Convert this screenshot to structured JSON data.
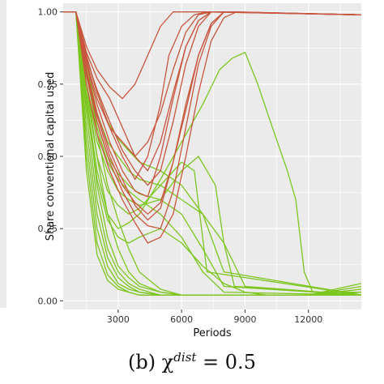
{
  "caption": {
    "prefix": "(b) χ",
    "superscript": "dist",
    "suffix": " = 0.5"
  },
  "chart_data": {
    "type": "line",
    "xlabel": "Periods",
    "ylabel": "Share conventional capital used",
    "xlim": [
      400,
      14500
    ],
    "ylim": [
      -0.03,
      1.03
    ],
    "xticks": [
      3000,
      6000,
      9000,
      12000
    ],
    "yticks": [
      0.0,
      0.25,
      0.5,
      0.75,
      1.0
    ],
    "xtick_labels": [
      "3000",
      "6000",
      "9000",
      "12000"
    ],
    "ytick_labels": [
      "0.00",
      "0.25",
      "0.50",
      "0.75",
      "1.00"
    ],
    "grid": true,
    "legend": "none",
    "panel_background": "#ebebeb",
    "grid_color": "#ffffff",
    "colors": {
      "red": "#c8553d",
      "green": "#7cc61f"
    },
    "series": [
      {
        "color": "red",
        "x": [
          400,
          1000,
          1500,
          2000,
          2600,
          3200,
          3800,
          4400,
          5000,
          5400,
          6000,
          6600,
          7200,
          14500
        ],
        "y": [
          1.0,
          1.0,
          0.85,
          0.72,
          0.6,
          0.5,
          0.42,
          0.5,
          0.68,
          0.85,
          0.95,
          0.99,
          1.0,
          0.99
        ]
      },
      {
        "color": "red",
        "x": [
          400,
          1000,
          1500,
          2000,
          2600,
          3200,
          3800,
          4400,
          5000,
          5600,
          6200,
          6800,
          7400,
          14500
        ],
        "y": [
          1.0,
          1.0,
          0.82,
          0.68,
          0.55,
          0.45,
          0.38,
          0.36,
          0.5,
          0.7,
          0.88,
          0.97,
          1.0,
          0.99
        ]
      },
      {
        "color": "red",
        "x": [
          400,
          1000,
          1500,
          2000,
          2600,
          3200,
          3800,
          4400,
          5000,
          5600,
          6200,
          6800,
          7400,
          8000,
          14500
        ],
        "y": [
          1.0,
          1.0,
          0.8,
          0.65,
          0.52,
          0.42,
          0.33,
          0.28,
          0.32,
          0.48,
          0.68,
          0.85,
          0.96,
          1.0,
          0.99
        ]
      },
      {
        "color": "red",
        "x": [
          400,
          1000,
          1500,
          2000,
          2600,
          3200,
          3800,
          4400,
          5000,
          5600,
          6200,
          6800,
          7400,
          8000,
          14500
        ],
        "y": [
          1.0,
          1.0,
          0.78,
          0.62,
          0.48,
          0.38,
          0.3,
          0.26,
          0.25,
          0.38,
          0.6,
          0.82,
          0.95,
          1.0,
          0.99
        ]
      },
      {
        "color": "red",
        "x": [
          400,
          1000,
          1500,
          2000,
          2600,
          3200,
          3800,
          4400,
          5000,
          5600,
          6200,
          6800,
          7400,
          8000,
          14500
        ],
        "y": [
          1.0,
          1.0,
          0.86,
          0.77,
          0.7,
          0.6,
          0.5,
          0.45,
          0.55,
          0.72,
          0.88,
          0.97,
          1.0,
          1.0,
          0.99
        ]
      },
      {
        "color": "red",
        "x": [
          400,
          1000,
          1500,
          2000,
          2600,
          3200,
          3800,
          4400,
          5000,
          5600,
          6200,
          6800,
          7400,
          8000,
          8600,
          14500
        ],
        "y": [
          1.0,
          1.0,
          0.75,
          0.58,
          0.45,
          0.35,
          0.27,
          0.2,
          0.22,
          0.3,
          0.5,
          0.72,
          0.9,
          0.98,
          1.0,
          0.99
        ]
      },
      {
        "color": "red",
        "x": [
          400,
          1000,
          1500,
          2000,
          2600,
          3200,
          3800,
          4400,
          5000,
          5600,
          6200,
          6800,
          7400,
          8000,
          14500
        ],
        "y": [
          1.0,
          1.0,
          0.88,
          0.8,
          0.74,
          0.7,
          0.75,
          0.85,
          0.95,
          1.0,
          1.0,
          1.0,
          1.0,
          1.0,
          0.99
        ]
      },
      {
        "color": "red",
        "x": [
          400,
          1000,
          1500,
          2000,
          2600,
          3200,
          3800,
          4400,
          5000,
          5600,
          6200,
          6800,
          7400,
          8000,
          14500
        ],
        "y": [
          1.0,
          1.0,
          0.83,
          0.7,
          0.6,
          0.55,
          0.5,
          0.55,
          0.65,
          0.8,
          0.93,
          0.99,
          1.0,
          1.0,
          0.99
        ]
      },
      {
        "color": "red",
        "x": [
          400,
          1000,
          1500,
          2000,
          2600,
          3200,
          3800,
          4400,
          5000,
          5600,
          6200,
          6800,
          7400,
          8000,
          14500
        ],
        "y": [
          1.0,
          1.0,
          0.79,
          0.64,
          0.5,
          0.4,
          0.34,
          0.3,
          0.34,
          0.48,
          0.66,
          0.85,
          0.96,
          1.0,
          0.99
        ]
      },
      {
        "color": "red",
        "x": [
          400,
          1000,
          1500,
          2000,
          2600,
          3200,
          3800,
          4400,
          5000,
          5600,
          6200,
          6800,
          7400,
          8000,
          14500
        ],
        "y": [
          1.0,
          1.0,
          0.84,
          0.73,
          0.62,
          0.52,
          0.45,
          0.4,
          0.45,
          0.62,
          0.82,
          0.95,
          1.0,
          1.0,
          0.99
        ]
      },
      {
        "color": "green",
        "x": [
          400,
          1000,
          1500,
          2000,
          2500,
          3000,
          3500,
          4000,
          5000,
          6000,
          7000,
          8000,
          9000,
          10000,
          11000,
          12000,
          13000,
          14500
        ],
        "y": [
          1.0,
          1.0,
          0.6,
          0.3,
          0.15,
          0.08,
          0.05,
          0.03,
          0.02,
          0.02,
          0.02,
          0.02,
          0.02,
          0.02,
          0.02,
          0.02,
          0.02,
          0.03
        ]
      },
      {
        "color": "green",
        "x": [
          400,
          1000,
          1500,
          2000,
          2500,
          3000,
          3500,
          4000,
          5000,
          6000,
          8000,
          10000,
          12000,
          14500
        ],
        "y": [
          1.0,
          1.0,
          0.55,
          0.25,
          0.12,
          0.06,
          0.04,
          0.03,
          0.02,
          0.02,
          0.02,
          0.02,
          0.02,
          0.04
        ]
      },
      {
        "color": "green",
        "x": [
          400,
          1000,
          1500,
          2000,
          2500,
          3000,
          3500,
          4000,
          5000,
          6000,
          8000,
          10000,
          12000,
          14500
        ],
        "y": [
          1.0,
          1.0,
          0.7,
          0.4,
          0.22,
          0.12,
          0.08,
          0.05,
          0.03,
          0.02,
          0.02,
          0.02,
          0.02,
          0.05
        ]
      },
      {
        "color": "green",
        "x": [
          400,
          1000,
          1500,
          2000,
          2500,
          3000,
          3500,
          4000,
          5000,
          6000,
          8000,
          10000,
          12000,
          14500
        ],
        "y": [
          1.0,
          1.0,
          0.5,
          0.2,
          0.09,
          0.05,
          0.03,
          0.02,
          0.02,
          0.02,
          0.02,
          0.02,
          0.02,
          0.02
        ]
      },
      {
        "color": "green",
        "x": [
          400,
          1000,
          1500,
          2000,
          2500,
          3000,
          3500,
          4000,
          5000,
          6000,
          8000,
          10000,
          12000,
          14500
        ],
        "y": [
          1.0,
          1.0,
          0.75,
          0.5,
          0.3,
          0.18,
          0.1,
          0.06,
          0.03,
          0.02,
          0.02,
          0.02,
          0.02,
          0.06
        ]
      },
      {
        "color": "green",
        "x": [
          400,
          1000,
          1500,
          2000,
          2500,
          3000,
          3500,
          4000,
          5000,
          6000,
          8000,
          10000,
          12000,
          14500
        ],
        "y": [
          1.0,
          1.0,
          0.65,
          0.35,
          0.18,
          0.1,
          0.06,
          0.04,
          0.02,
          0.02,
          0.02,
          0.02,
          0.02,
          0.03
        ]
      },
      {
        "color": "green",
        "x": [
          400,
          1000,
          1500,
          2000,
          2500,
          3000,
          3500,
          4000,
          5000,
          6000,
          8000,
          10000,
          12000,
          14500
        ],
        "y": [
          1.0,
          1.0,
          0.45,
          0.16,
          0.07,
          0.04,
          0.03,
          0.02,
          0.02,
          0.02,
          0.02,
          0.02,
          0.02,
          0.02
        ]
      },
      {
        "color": "green",
        "x": [
          400,
          1000,
          1500,
          2000,
          2500,
          3000,
          3500,
          4000,
          5000,
          6000,
          8000,
          10000,
          12000,
          14500
        ],
        "y": [
          1.0,
          1.0,
          0.8,
          0.58,
          0.4,
          0.28,
          0.18,
          0.1,
          0.04,
          0.02,
          0.02,
          0.02,
          0.02,
          0.04
        ]
      },
      {
        "color": "green",
        "x": [
          400,
          1000,
          1500,
          2000,
          2500,
          3000,
          3500,
          4000,
          5000,
          6000,
          7000,
          8000,
          9000,
          14500
        ],
        "y": [
          1.0,
          1.0,
          0.82,
          0.65,
          0.55,
          0.5,
          0.45,
          0.42,
          0.4,
          0.35,
          0.3,
          0.2,
          0.05,
          0.02
        ]
      },
      {
        "color": "green",
        "x": [
          400,
          1000,
          1500,
          2000,
          2500,
          3000,
          3500,
          4000,
          5000,
          6000,
          7000,
          8000,
          14500
        ],
        "y": [
          1.0,
          1.0,
          0.78,
          0.6,
          0.48,
          0.42,
          0.38,
          0.35,
          0.3,
          0.22,
          0.1,
          0.03,
          0.02
        ]
      },
      {
        "color": "green",
        "x": [
          400,
          1000,
          1500,
          2000,
          2500,
          3000,
          3500,
          4000,
          5000,
          6000,
          7000,
          8000,
          14500
        ],
        "y": [
          1.0,
          1.0,
          0.8,
          0.62,
          0.5,
          0.44,
          0.4,
          0.37,
          0.35,
          0.3,
          0.18,
          0.05,
          0.02
        ]
      },
      {
        "color": "green",
        "x": [
          400,
          1000,
          1500,
          2000,
          2500,
          3000,
          3500,
          4000,
          5000,
          6000,
          6600,
          7200,
          14500
        ],
        "y": [
          1.0,
          1.0,
          0.72,
          0.5,
          0.38,
          0.33,
          0.3,
          0.32,
          0.4,
          0.48,
          0.45,
          0.1,
          0.02
        ]
      },
      {
        "color": "green",
        "x": [
          400,
          1000,
          1500,
          2000,
          2500,
          3000,
          3500,
          4000,
          5000,
          6000,
          6800,
          7600,
          8000,
          8500,
          14500
        ],
        "y": [
          1.0,
          1.0,
          0.75,
          0.55,
          0.45,
          0.38,
          0.35,
          0.33,
          0.35,
          0.45,
          0.5,
          0.4,
          0.2,
          0.05,
          0.02
        ]
      },
      {
        "color": "green",
        "x": [
          400,
          1000,
          1500,
          2000,
          2500,
          3000,
          3500,
          4000,
          5000,
          6000,
          7000,
          7800,
          8400,
          9000,
          9600,
          10200,
          11000,
          11400,
          11800,
          12200,
          14500
        ],
        "y": [
          1.0,
          1.0,
          0.7,
          0.45,
          0.3,
          0.25,
          0.27,
          0.3,
          0.42,
          0.55,
          0.68,
          0.8,
          0.84,
          0.86,
          0.75,
          0.62,
          0.45,
          0.35,
          0.1,
          0.03,
          0.03
        ]
      },
      {
        "color": "green",
        "x": [
          400,
          1000,
          1500,
          2000,
          2500,
          3000,
          3500,
          4000,
          5000,
          6000,
          7000,
          8000,
          9000,
          10000,
          11000,
          12000,
          14500
        ],
        "y": [
          1.0,
          1.0,
          0.68,
          0.42,
          0.28,
          0.22,
          0.2,
          0.22,
          0.25,
          0.2,
          0.12,
          0.06,
          0.03,
          0.02,
          0.02,
          0.02,
          0.02
        ]
      },
      {
        "color": "green",
        "x": [
          400,
          1000,
          1500,
          2000,
          2500,
          3000,
          3500,
          4000,
          5000,
          6000,
          7000,
          8000,
          14500
        ],
        "y": [
          1.0,
          1.0,
          0.85,
          0.72,
          0.62,
          0.56,
          0.52,
          0.48,
          0.45,
          0.4,
          0.3,
          0.1,
          0.02
        ]
      }
    ]
  }
}
